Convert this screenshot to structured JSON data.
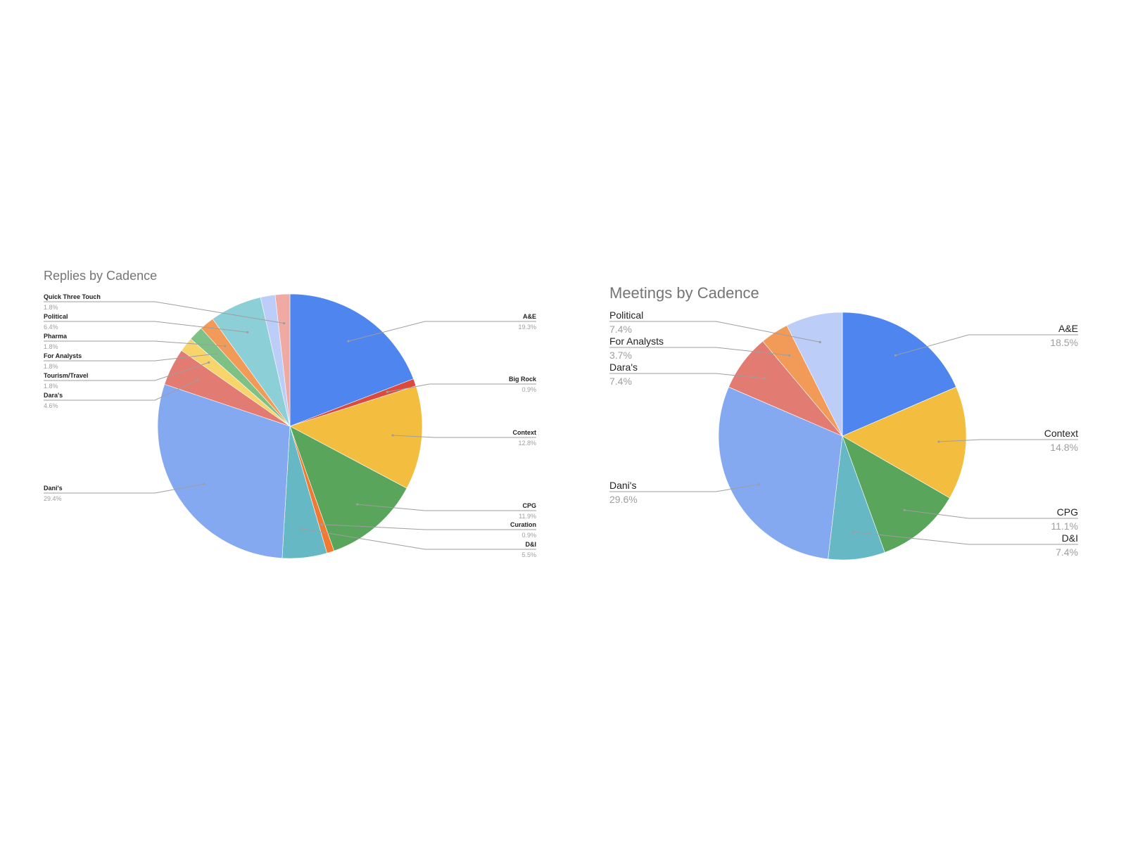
{
  "chart_data": [
    {
      "type": "pie",
      "title": "Replies by Cadence",
      "slices": [
        {
          "name": "A&E",
          "value": 19.3,
          "label": "19.3%",
          "color": "#4e85ee"
        },
        {
          "name": "Big Rock",
          "value": 0.9,
          "label": "0.9%",
          "color": "#dc4a3d"
        },
        {
          "name": "Context",
          "value": 12.8,
          "label": "12.8%",
          "color": "#f3bd3f"
        },
        {
          "name": "CPG",
          "value": 11.9,
          "label": "11.9%",
          "color": "#59a55c"
        },
        {
          "name": "Curation",
          "value": 0.9,
          "label": "0.9%",
          "color": "#f07b30"
        },
        {
          "name": "D&I",
          "value": 5.5,
          "label": "5.5%",
          "color": "#66b9c4"
        },
        {
          "name": "Dani's",
          "value": 29.4,
          "label": "29.4%",
          "color": "#84a9f0"
        },
        {
          "name": "Dara's",
          "value": 4.6,
          "label": "4.6%",
          "color": "#e27c73"
        },
        {
          "name": "Tourism/Travel",
          "value": 1.8,
          "label": "1.8%",
          "color": "#f8d46c"
        },
        {
          "name": "For Analysts",
          "value": 1.8,
          "label": "1.8%",
          "color": "#7dc186"
        },
        {
          "name": "Pharma",
          "value": 1.8,
          "label": "1.8%",
          "color": "#f29a58"
        },
        {
          "name": "Political",
          "value": 6.4,
          "label": "6.4%",
          "color": "#8ccfd6"
        },
        {
          "name": "",
          "value": 1.8,
          "label": "",
          "color": "#bccdf7"
        },
        {
          "name": "Quick Three Touch",
          "value": 1.8,
          "label": "1.8%",
          "color": "#efaaa3"
        }
      ]
    },
    {
      "type": "pie",
      "title": "Meetings by Cadence",
      "slices": [
        {
          "name": "A&E",
          "value": 18.5,
          "label": "18.5%",
          "color": "#4e85ee"
        },
        {
          "name": "Context",
          "value": 14.8,
          "label": "14.8%",
          "color": "#f3bd3f"
        },
        {
          "name": "CPG",
          "value": 11.1,
          "label": "11.1%",
          "color": "#59a55c"
        },
        {
          "name": "D&I",
          "value": 7.4,
          "label": "7.4%",
          "color": "#66b9c4"
        },
        {
          "name": "Dani's",
          "value": 29.6,
          "label": "29.6%",
          "color": "#84a9f0"
        },
        {
          "name": "Dara's",
          "value": 7.4,
          "label": "7.4%",
          "color": "#e27c73"
        },
        {
          "name": "For Analysts",
          "value": 3.7,
          "label": "3.7%",
          "color": "#f29a58"
        },
        {
          "name": "Political",
          "value": 7.4,
          "label": "7.4%",
          "color": "#bccdf7"
        }
      ]
    }
  ]
}
